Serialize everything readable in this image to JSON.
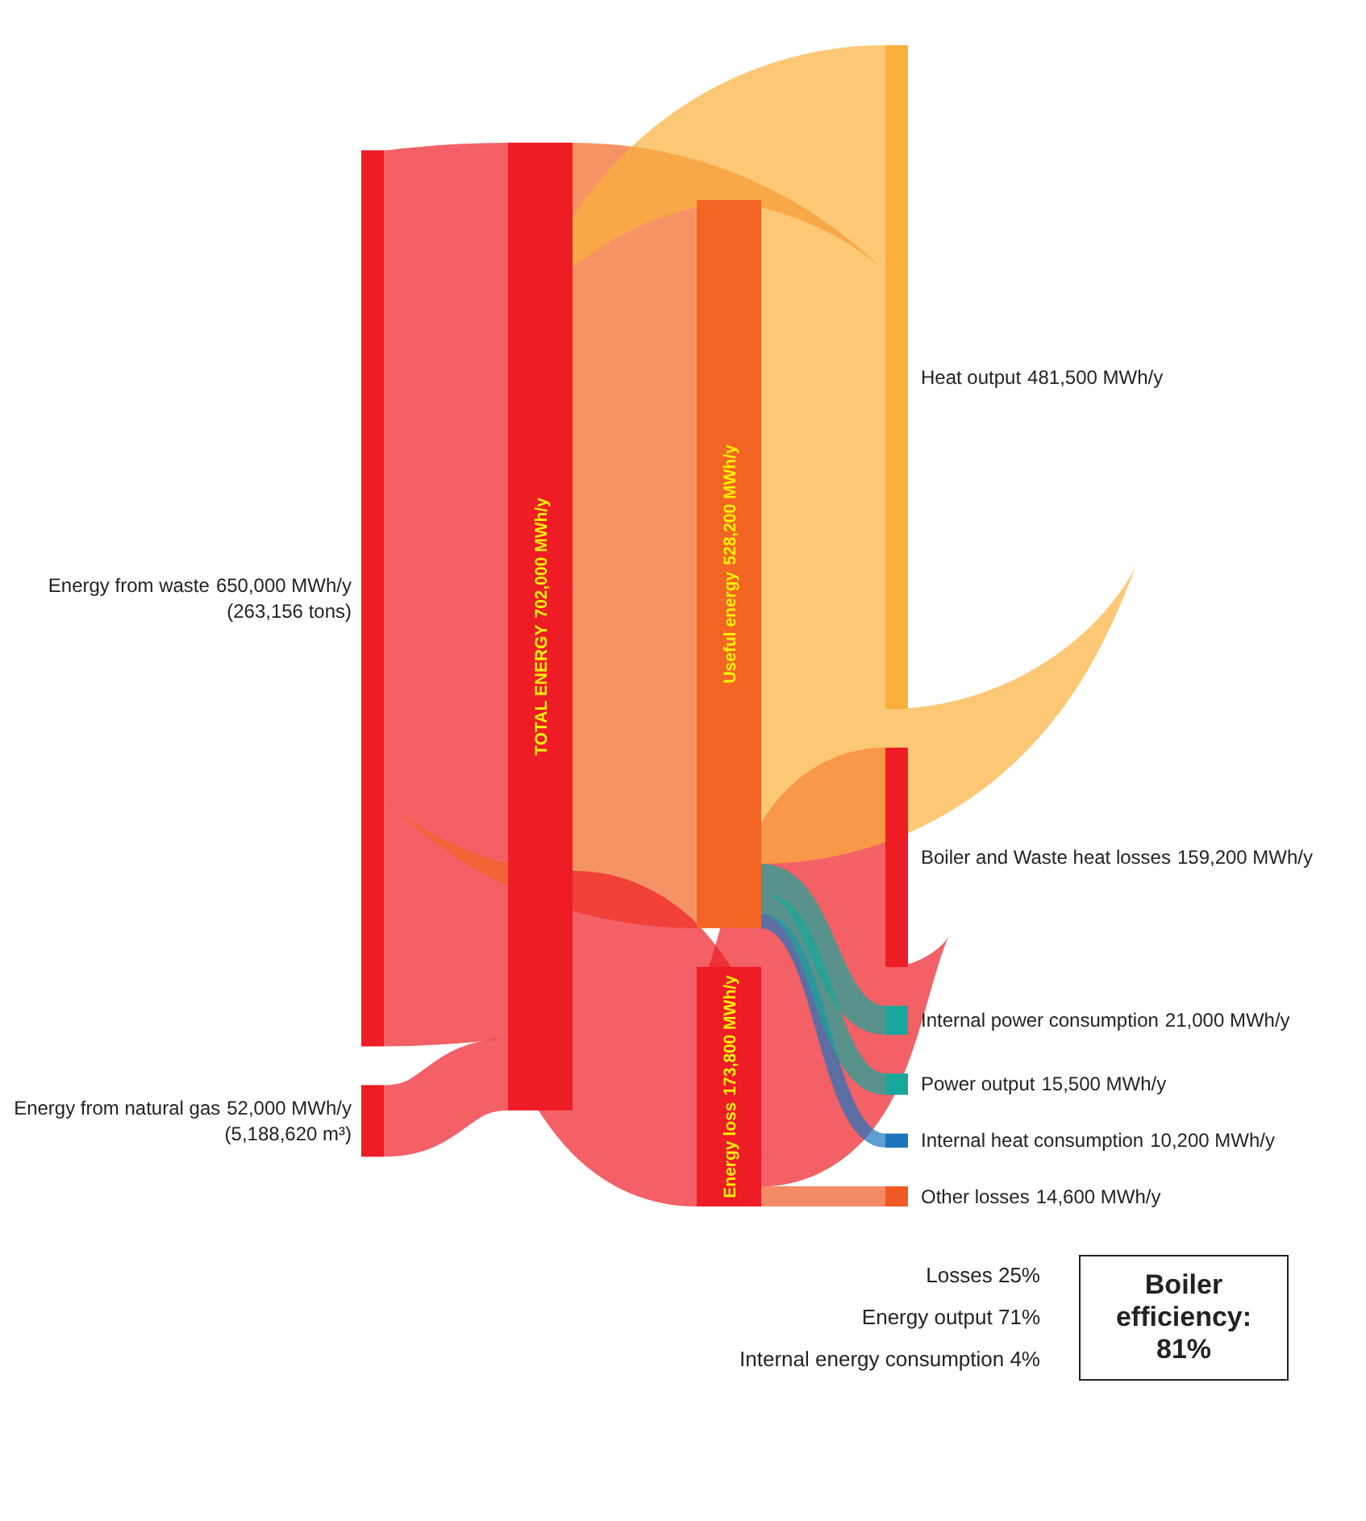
{
  "chart_data": {
    "type": "other",
    "categories": [
      "Energy from natural gas",
      "Energy from waste",
      "TOTAL ENERGY",
      "Useful energy",
      "Energy loss",
      "Boiler and Waste heat losses",
      "Other losses",
      "Internal heat consumption",
      "Internal power consumption",
      "Power output",
      "Heat output"
    ],
    "values": [
      52000,
      650000,
      702000,
      528200,
      173800,
      159200,
      14600,
      10200,
      21000,
      15500,
      481500
    ],
    "value_labels": [
      "52,000 MWh/y",
      "650,000 MWh/y",
      "702,000 MWh/y",
      "528,200 MWh/y",
      "173,800 MWh/y",
      "159,200 MWh/y",
      "14,600 MWh/y",
      "10,200 MWh/y",
      "21,000 MWh/y",
      "15,500 MWh/y",
      "481,500 MWh/y"
    ],
    "colors": [
      "#ee1c25",
      "#ee1c25",
      "#ee1c25",
      "#f26522",
      "#ee1c25",
      "#ee1c25",
      "#f15a24",
      "#1b75bc",
      "#17a89a",
      "#17a89a",
      "#fbb03b"
    ],
    "annotations": [
      "(5,188,620 m³)",
      "(263,156 tons)",
      "Losses 25%",
      "Energy output 71%",
      "Internal energy consumption 4%",
      "Boiler efficiency: 81%"
    ]
  }
}
